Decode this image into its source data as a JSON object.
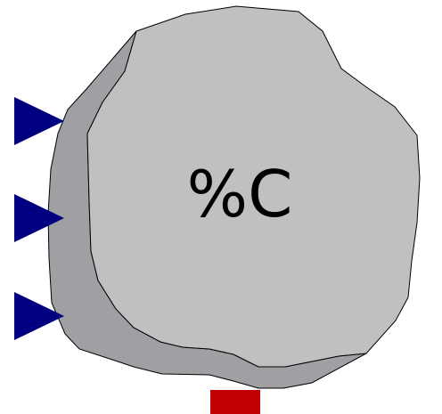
{
  "block": {
    "label": "%C",
    "colors": {
      "face": "#c0c0c0",
      "shadow": "#a0a0a4",
      "outline": "#000000",
      "input_port": "#000080",
      "output_port": "#c00000",
      "background": "#ffffff"
    },
    "input_port_count": 3,
    "output_port_count": 1
  }
}
